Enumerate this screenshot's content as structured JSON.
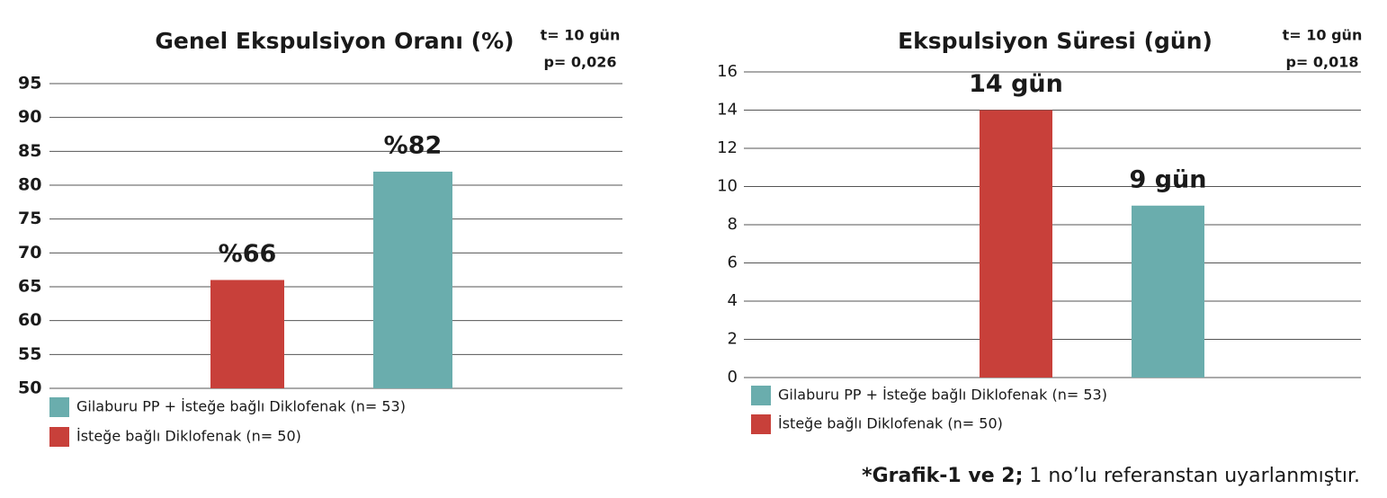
{
  "chart_data": [
    {
      "type": "bar",
      "title": "Genel Ekspulsiyon Oranı (%)",
      "annotations": [
        "t= 10 gün",
        "p= 0,026"
      ],
      "series": [
        {
          "name": "Gilaburu PP + İsteğe bağlı Diklofenak (n= 53)",
          "color": "#6aadad",
          "values": [
            82
          ],
          "value_labels": [
            "%82"
          ]
        },
        {
          "name": "İsteğe bağlı Diklofenak (n= 50)",
          "color": "#c8403a",
          "values": [
            66
          ],
          "value_labels": [
            "%66"
          ]
        }
      ],
      "ylim": [
        50,
        95
      ],
      "yticks": [
        50,
        55,
        60,
        65,
        70,
        75,
        80,
        85,
        90,
        95
      ],
      "grid": true
    },
    {
      "type": "bar",
      "title": "Ekspulsiyon Süresi (gün)",
      "annotations": [
        "t= 10 gün",
        "p= 0,018"
      ],
      "series": [
        {
          "name": "Gilaburu PP + İsteğe bağlı Diklofenak (n= 53)",
          "color": "#6aadad",
          "values": [
            9
          ],
          "value_labels": [
            "9 gün"
          ]
        },
        {
          "name": "İsteğe bağlı Diklofenak (n= 50)",
          "color": "#c8403a",
          "values": [
            14
          ],
          "value_labels": [
            "14 gün"
          ]
        }
      ],
      "ylim": [
        0,
        16
      ],
      "yticks": [
        0,
        2,
        4,
        6,
        8,
        10,
        12,
        14,
        16
      ],
      "grid": true
    }
  ],
  "footnote": {
    "bold": "*Grafik-1 ve 2;",
    "text": " 1 no’lu referanstan uyarlanmıştır."
  }
}
